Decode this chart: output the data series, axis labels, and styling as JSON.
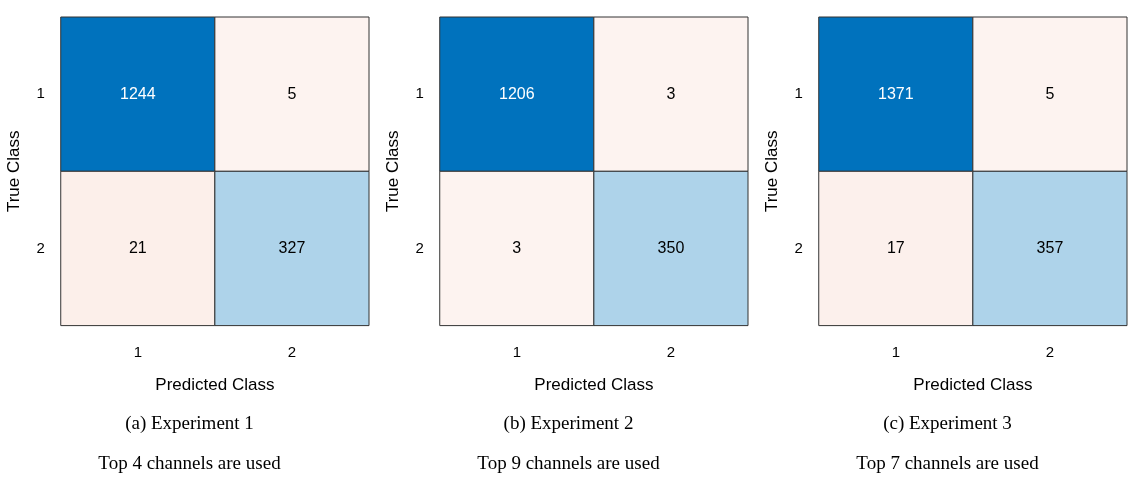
{
  "chart_data": [
    {
      "type": "heatmap",
      "xlabel": "Predicted Class",
      "ylabel": "True Class",
      "categories": [
        "1",
        "2"
      ],
      "y_categories": [
        "1",
        "2"
      ],
      "cells": [
        [
          1244,
          5
        ],
        [
          21,
          327
        ]
      ],
      "colors": [
        "#0072bd",
        "#fdf3f0",
        "#fcefea",
        "#aed3ea"
      ],
      "data_labels": true,
      "annotations": [
        "(a) Experiment 1",
        "Top 4 channels are used"
      ]
    },
    {
      "type": "heatmap",
      "xlabel": "Predicted Class",
      "ylabel": "True Class",
      "categories": [
        "1",
        "2"
      ],
      "y_categories": [
        "1",
        "2"
      ],
      "cells": [
        [
          1206,
          3
        ],
        [
          3,
          350
        ]
      ],
      "colors": [
        "#0072bd",
        "#fdf3f0",
        "#fdf3f0",
        "#aed3ea"
      ],
      "data_labels": true,
      "annotations": [
        "(b) Experiment 2",
        "Top 9 channels are used"
      ]
    },
    {
      "type": "heatmap",
      "xlabel": "Predicted Class",
      "ylabel": "True Class",
      "categories": [
        "1",
        "2"
      ],
      "y_categories": [
        "1",
        "2"
      ],
      "cells": [
        [
          1371,
          5
        ],
        [
          17,
          357
        ]
      ],
      "colors": [
        "#0072bd",
        "#fdf3f0",
        "#fcf0ec",
        "#aed3ea"
      ],
      "data_labels": true,
      "annotations": [
        "(c) Experiment 3",
        "Top 7 channels are used"
      ]
    }
  ]
}
